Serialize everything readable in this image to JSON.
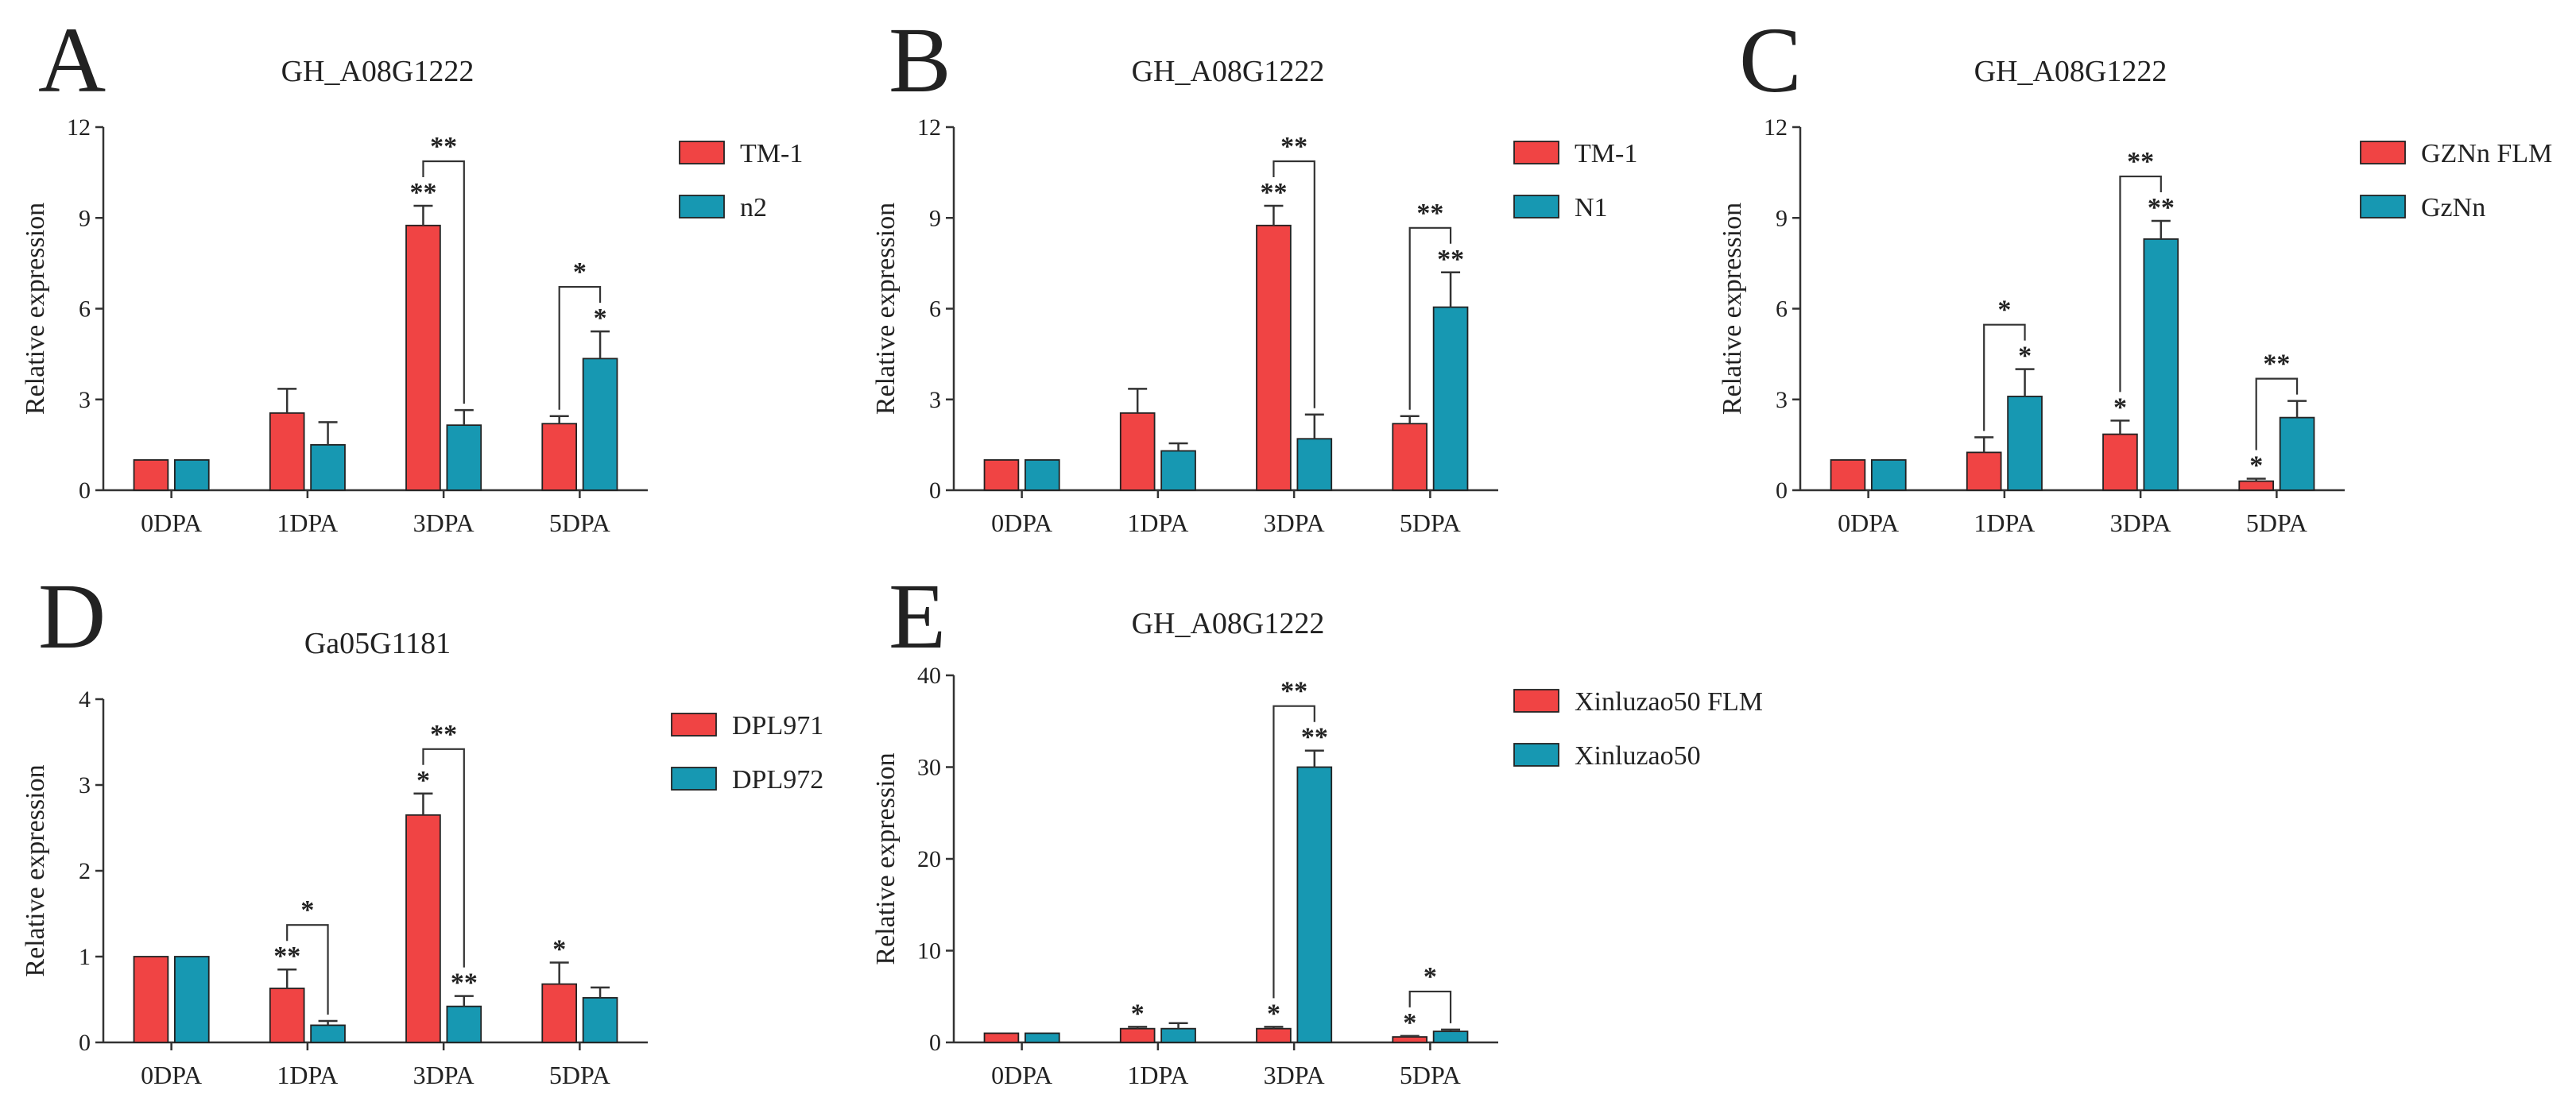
{
  "colors": {
    "series1": "#f04444",
    "series2": "#1798b2"
  },
  "chart_data": [
    {
      "id": "A",
      "panel_label": "A",
      "type": "bar",
      "title": "GH_A08G1222",
      "ylabel": "Relative expression",
      "ylim": [
        0,
        12
      ],
      "yticks": [
        "0",
        "3",
        "6",
        "9",
        "12"
      ],
      "ytick_values": [
        0,
        3,
        6,
        9,
        12
      ],
      "categories": [
        "0DPA",
        "1DPA",
        "3DPA",
        "5DPA"
      ],
      "series": [
        {
          "name": "TM-1",
          "values": [
            1,
            2.55,
            8.75,
            2.2
          ],
          "errors": [
            0,
            0.8,
            0.65,
            0.25
          ],
          "marks": [
            "",
            "",
            "**",
            ""
          ]
        },
        {
          "name": "n2",
          "values": [
            1,
            1.5,
            2.15,
            4.35
          ],
          "errors": [
            0,
            0.75,
            0.5,
            0.9
          ],
          "marks": [
            "",
            "",
            "",
            "*"
          ]
        }
      ],
      "brackets": [
        {
          "category": 2,
          "label": "**"
        },
        {
          "category": 3,
          "label": "*"
        }
      ]
    },
    {
      "id": "B",
      "panel_label": "B",
      "type": "bar",
      "title": "GH_A08G1222",
      "ylabel": "Relative expression",
      "ylim": [
        0,
        12
      ],
      "yticks": [
        "0",
        "3",
        "6",
        "9",
        "12"
      ],
      "ytick_values": [
        0,
        3,
        6,
        9,
        12
      ],
      "categories": [
        "0DPA",
        "1DPA",
        "3DPA",
        "5DPA"
      ],
      "series": [
        {
          "name": "TM-1",
          "values": [
            1,
            2.55,
            8.75,
            2.2
          ],
          "errors": [
            0,
            0.8,
            0.65,
            0.25
          ],
          "marks": [
            "",
            "",
            "**",
            ""
          ]
        },
        {
          "name": "N1",
          "values": [
            1,
            1.3,
            1.7,
            6.05
          ],
          "errors": [
            0,
            0.25,
            0.8,
            1.15
          ],
          "marks": [
            "",
            "",
            "",
            "**"
          ]
        }
      ],
      "brackets": [
        {
          "category": 2,
          "label": "**"
        },
        {
          "category": 3,
          "label": "**"
        }
      ]
    },
    {
      "id": "C",
      "panel_label": "C",
      "type": "bar",
      "title": "GH_A08G1222",
      "ylabel": "Relative expression",
      "ylim": [
        0,
        12
      ],
      "yticks": [
        "0",
        "3",
        "6",
        "9",
        "12"
      ],
      "ytick_values": [
        0,
        3,
        6,
        9,
        12
      ],
      "categories": [
        "0DPA",
        "1DPA",
        "3DPA",
        "5DPA"
      ],
      "series": [
        {
          "name": "GZNn FLM",
          "values": [
            1,
            1.25,
            1.85,
            0.3
          ],
          "errors": [
            0,
            0.5,
            0.45,
            0.08
          ],
          "marks": [
            "",
            "",
            "*",
            "*"
          ]
        },
        {
          "name": "GzNn",
          "values": [
            1,
            3.1,
            8.3,
            2.4
          ],
          "errors": [
            0,
            0.9,
            0.6,
            0.55
          ],
          "marks": [
            "",
            "*",
            "**",
            ""
          ]
        }
      ],
      "brackets": [
        {
          "category": 1,
          "label": "*"
        },
        {
          "category": 2,
          "label": "**"
        },
        {
          "category": 3,
          "label": "**"
        }
      ]
    },
    {
      "id": "D",
      "panel_label": "D",
      "type": "bar",
      "title": "Ga05G1181",
      "ylabel": "Relative expression",
      "ylim": [
        0,
        4
      ],
      "yticks": [
        "0",
        "1",
        "2",
        "3",
        "4"
      ],
      "ytick_values": [
        0,
        1,
        2,
        3,
        4
      ],
      "categories": [
        "0DPA",
        "1DPA",
        "3DPA",
        "5DPA"
      ],
      "series": [
        {
          "name": "DPL971",
          "values": [
            1,
            0.63,
            2.65,
            0.68
          ],
          "errors": [
            0,
            0.22,
            0.25,
            0.25
          ],
          "marks": [
            "",
            "**",
            "*",
            "*"
          ]
        },
        {
          "name": "DPL972",
          "values": [
            1,
            0.2,
            0.42,
            0.52
          ],
          "errors": [
            0,
            0.05,
            0.12,
            0.12
          ],
          "marks": [
            "",
            "",
            "**",
            ""
          ]
        }
      ],
      "brackets": [
        {
          "category": 1,
          "label": "*"
        },
        {
          "category": 2,
          "label": "**"
        }
      ]
    },
    {
      "id": "E",
      "panel_label": "E",
      "type": "bar",
      "title": "GH_A08G1222",
      "ylabel": "Relative expression",
      "ylim": [
        0,
        40
      ],
      "yticks": [
        "0",
        "10",
        "20",
        "30",
        "40"
      ],
      "ytick_values": [
        0,
        10,
        20,
        30,
        40
      ],
      "categories": [
        "0DPA",
        "1DPA",
        "3DPA",
        "5DPA"
      ],
      "series": [
        {
          "name": "Xinluzao50 FLM",
          "values": [
            1,
            1.5,
            1.5,
            0.6
          ],
          "errors": [
            0,
            0.2,
            0.2,
            0.1
          ],
          "marks": [
            "",
            "*",
            "*",
            "*"
          ]
        },
        {
          "name": "Xinluzao50",
          "values": [
            1,
            1.5,
            30,
            1.2
          ],
          "errors": [
            0,
            0.6,
            1.8,
            0.2
          ],
          "marks": [
            "",
            "",
            "**",
            ""
          ]
        }
      ],
      "brackets": [
        {
          "category": 2,
          "label": "**"
        },
        {
          "category": 3,
          "label": "*"
        }
      ]
    }
  ]
}
